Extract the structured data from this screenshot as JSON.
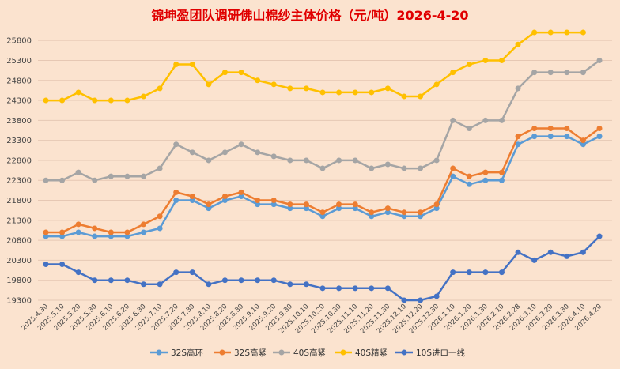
{
  "chart_data": {
    "type": "line",
    "title": "锦坤盈团队调研佛山棉纱主体价格（元/吨）2026-4-20",
    "xlabel": "",
    "ylabel": "",
    "ylim": [
      19300,
      26100
    ],
    "yticks": [
      19300,
      19800,
      20300,
      20800,
      21300,
      21800,
      22300,
      22800,
      23300,
      23800,
      24300,
      24800,
      25300,
      25800
    ],
    "grid": true,
    "legend": "bottom",
    "x": [
      "2025.4.30",
      "2025.5.10",
      "2025.5.20",
      "2025.5.30",
      "2025.6.10",
      "2025.6.20",
      "2025.6.30",
      "2025.7.10",
      "2025.7.20",
      "2025.7.30",
      "2025.8.10",
      "2025.8.20",
      "2025.8.30",
      "2025.9.10",
      "2025.9.20",
      "2025.9.30",
      "2025.10.10",
      "2025.10.20",
      "2025.10.30",
      "2025.11.10",
      "2025.11.20",
      "2025.11.30",
      "2025.12.10",
      "2025.12.20",
      "2025.12.30",
      "2026.1.10",
      "2026.1.20",
      "2026.1.30",
      "2026.2.10",
      "2026.2.28",
      "2026.3.10",
      "2026.3.20",
      "2026.3.30",
      "2026.4.10",
      "2026.4.20"
    ],
    "series": [
      {
        "name": "32S高环",
        "color": "#5b9bd5",
        "values": [
          20900,
          20900,
          21000,
          20900,
          20900,
          20900,
          21000,
          21100,
          21800,
          21800,
          21600,
          21800,
          21900,
          21700,
          21700,
          21600,
          21600,
          21400,
          21600,
          21600,
          21400,
          21500,
          21400,
          21400,
          21600,
          22400,
          22200,
          22300,
          22300,
          23200,
          23400,
          23400,
          23400,
          23200,
          23400
        ]
      },
      {
        "name": "32S高紧",
        "color": "#ed7d31",
        "values": [
          21000,
          21000,
          21200,
          21100,
          21000,
          21000,
          21200,
          21400,
          22000,
          21900,
          21700,
          21900,
          22000,
          21800,
          21800,
          21700,
          21700,
          21500,
          21700,
          21700,
          21500,
          21600,
          21500,
          21500,
          21700,
          22600,
          22400,
          22500,
          22500,
          23400,
          23600,
          23600,
          23600,
          23300,
          23600
        ]
      },
      {
        "name": "40S高紧",
        "color": "#a5a5a5",
        "values": [
          22300,
          22300,
          22500,
          22300,
          22400,
          22400,
          22400,
          22600,
          23200,
          23000,
          22800,
          23000,
          23200,
          23000,
          22900,
          22800,
          22800,
          22600,
          22800,
          22800,
          22600,
          22700,
          22600,
          22600,
          22800,
          23800,
          23600,
          23800,
          23800,
          24600,
          25000,
          25000,
          25000,
          25000,
          25300
        ]
      },
      {
        "name": "40S精紧",
        "color": "#ffc000",
        "values": [
          24300,
          24300,
          24500,
          24300,
          24300,
          24300,
          24400,
          24600,
          25200,
          25200,
          24700,
          25000,
          25000,
          24800,
          24700,
          24600,
          24600,
          24500,
          24500,
          24500,
          24500,
          24600,
          24400,
          24400,
          24700,
          25000,
          25200,
          25300,
          25300,
          25700,
          26000,
          26000,
          26000,
          26000,
          null
        ]
      },
      {
        "name": "10S进口一线",
        "color": "#4472c4",
        "values": [
          20200,
          20200,
          20000,
          19800,
          19800,
          19800,
          19700,
          19700,
          20000,
          20000,
          19700,
          19800,
          19800,
          19800,
          19800,
          19700,
          19700,
          19600,
          19600,
          19600,
          19600,
          19600,
          19300,
          19300,
          19400,
          20000,
          20000,
          20000,
          20000,
          20500,
          20300,
          20500,
          20400,
          20500,
          20900
        ]
      }
    ]
  }
}
